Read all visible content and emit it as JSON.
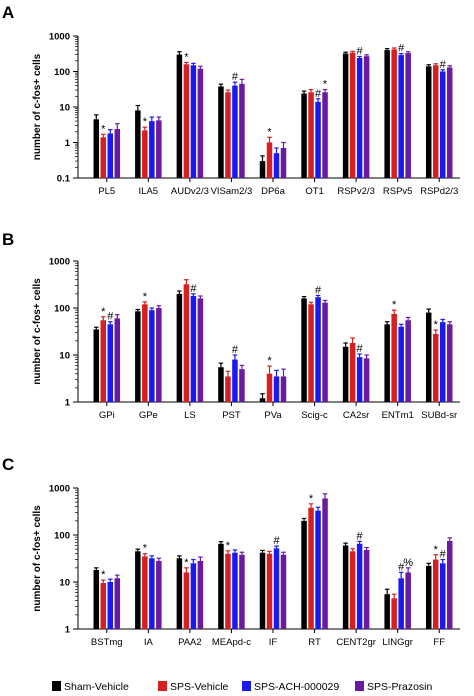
{
  "legend": {
    "colors": [
      "#000000",
      "#d42020",
      "#1a1aee",
      "#6a1a9e"
    ],
    "entries": [
      "Sham-Vehicle",
      "SPS-Vehicle",
      "SPS-ACH-000029",
      "SPS-Prazosin"
    ]
  },
  "chart_data": [
    {
      "type": "bar",
      "panel": "A",
      "ylabel": "number of c-fos+ cells",
      "yscale": "log",
      "ylim": [
        0.1,
        1000
      ],
      "yticks": [
        "0.1",
        "1",
        "10",
        "100",
        "1000"
      ],
      "categories": [
        "PL5",
        "ILA5",
        "AUDv2/3",
        "VISam2/3",
        "DP6a",
        "OT1",
        "RSPv2/3",
        "RSPv5",
        "RSPd2/3"
      ],
      "series": [
        {
          "name": "Sham-Vehicle",
          "values": [
            4.5,
            8,
            300,
            38,
            0.3,
            24,
            320,
            400,
            140
          ],
          "errors": [
            1.5,
            3,
            60,
            6,
            0.12,
            4,
            30,
            40,
            15
          ]
        },
        {
          "name": "SPS-Vehicle",
          "values": [
            1.4,
            2.2,
            160,
            26,
            1.0,
            26,
            340,
            420,
            150
          ],
          "errors": [
            0.3,
            0.5,
            20,
            4,
            0.4,
            5,
            30,
            40,
            15
          ]
        },
        {
          "name": "SPS-ACH-000029",
          "values": [
            1.8,
            4,
            150,
            40,
            0.5,
            14,
            240,
            290,
            100
          ],
          "errors": [
            0.5,
            1.2,
            20,
            10,
            0.2,
            3,
            25,
            30,
            12
          ]
        },
        {
          "name": "SPS-Prazosin",
          "values": [
            2.4,
            4.2,
            120,
            45,
            0.7,
            26,
            270,
            330,
            130
          ],
          "errors": [
            1.0,
            1.0,
            20,
            15,
            0.3,
            5,
            25,
            30,
            15
          ]
        }
      ],
      "annotations": [
        {
          "category": "PL5",
          "series": 1,
          "text": "*"
        },
        {
          "category": "ILA5",
          "series": 1,
          "text": "*"
        },
        {
          "category": "AUDv2/3",
          "series": 1,
          "text": "*"
        },
        {
          "category": "VISam2/3",
          "series": 2,
          "text": "#"
        },
        {
          "category": "DP6a",
          "series": 1,
          "text": "*"
        },
        {
          "category": "OT1",
          "series": 2,
          "text": "#"
        },
        {
          "category": "OT1",
          "series": 3,
          "text": "*"
        },
        {
          "category": "RSPv2/3",
          "series": 2,
          "text": "#"
        },
        {
          "category": "RSPv5",
          "series": 2,
          "text": "#"
        },
        {
          "category": "RSPd2/3",
          "series": 2,
          "text": "#"
        }
      ]
    },
    {
      "type": "bar",
      "panel": "B",
      "ylabel": "number of c-fos+ cells",
      "yscale": "log",
      "ylim": [
        1,
        1000
      ],
      "yticks": [
        "1",
        "10",
        "100",
        "1000"
      ],
      "categories": [
        "GPi",
        "GPe",
        "LS",
        "PST",
        "PVa",
        "Scig-c",
        "CA2sr",
        "ENTm1",
        "SUBd-sr"
      ],
      "series": [
        {
          "name": "Sham-Vehicle",
          "values": [
            35,
            85,
            200,
            5.5,
            1.2,
            160,
            15,
            45,
            80
          ],
          "errors": [
            4,
            8,
            30,
            1.2,
            0.3,
            15,
            3,
            6,
            15
          ]
        },
        {
          "name": "SPS-Vehicle",
          "values": [
            55,
            120,
            320,
            3.5,
            4,
            120,
            18,
            75,
            28
          ],
          "errors": [
            10,
            15,
            80,
            1.0,
            1.8,
            12,
            5,
            15,
            6
          ]
        },
        {
          "name": "SPS-ACH-000029",
          "values": [
            45,
            90,
            180,
            8,
            3.5,
            170,
            9,
            40,
            50
          ],
          "errors": [
            6,
            10,
            20,
            2,
            1.2,
            15,
            1.5,
            5,
            7
          ]
        },
        {
          "name": "SPS-Prazosin",
          "values": [
            60,
            100,
            160,
            5,
            3.5,
            130,
            8.5,
            55,
            45
          ],
          "errors": [
            12,
            12,
            20,
            1.0,
            1.5,
            15,
            1.5,
            8,
            6
          ]
        }
      ],
      "annotations": [
        {
          "category": "GPi",
          "series": 1,
          "text": "*"
        },
        {
          "category": "GPi",
          "series": 2,
          "text": "#"
        },
        {
          "category": "GPe",
          "series": 1,
          "text": "*"
        },
        {
          "category": "LS",
          "series": 2,
          "text": "#"
        },
        {
          "category": "PST",
          "series": 2,
          "text": "#"
        },
        {
          "category": "PVa",
          "series": 1,
          "text": "*"
        },
        {
          "category": "Scig-c",
          "series": 2,
          "text": "#"
        },
        {
          "category": "CA2sr",
          "series": 2,
          "text": "#"
        },
        {
          "category": "ENTm1",
          "series": 1,
          "text": "*"
        },
        {
          "category": "SUBd-sr",
          "series": 1,
          "text": "*"
        }
      ]
    },
    {
      "type": "bar",
      "panel": "C",
      "ylabel": "number of c-fos+ cells",
      "yscale": "log",
      "ylim": [
        1,
        1000
      ],
      "yticks": [
        "1",
        "10",
        "100",
        "1000"
      ],
      "categories": [
        "BSTmg",
        "IA",
        "PAA2",
        "MEApd-c",
        "IF",
        "RT",
        "CENT2gr",
        "LINGgr",
        "FF"
      ],
      "series": [
        {
          "name": "Sham-Vehicle",
          "values": [
            18,
            45,
            32,
            65,
            42,
            200,
            60,
            5.5,
            22
          ],
          "errors": [
            2,
            5,
            4,
            7,
            5,
            25,
            7,
            1.5,
            3
          ]
        },
        {
          "name": "SPS-Vehicle",
          "values": [
            9.5,
            35,
            16,
            40,
            40,
            380,
            45,
            4.5,
            30
          ],
          "errors": [
            1.5,
            5,
            4,
            6,
            5,
            80,
            6,
            1.0,
            8
          ]
        },
        {
          "name": "SPS-ACH-000029",
          "values": [
            10,
            32,
            25,
            42,
            52,
            330,
            65,
            12,
            25
          ],
          "errors": [
            1.5,
            4,
            5,
            6,
            6,
            60,
            8,
            4,
            5
          ]
        },
        {
          "name": "SPS-Prazosin",
          "values": [
            12,
            28,
            28,
            38,
            38,
            600,
            48,
            16,
            75
          ],
          "errors": [
            2,
            4,
            6,
            5,
            5,
            150,
            6,
            4,
            12
          ]
        }
      ],
      "annotations": [
        {
          "category": "BSTmg",
          "series": 1,
          "text": "*"
        },
        {
          "category": "IA",
          "series": 1,
          "text": "*"
        },
        {
          "category": "PAA2",
          "series": 1,
          "text": "*"
        },
        {
          "category": "MEApd-c",
          "series": 1,
          "text": "*"
        },
        {
          "category": "IF",
          "series": 2,
          "text": "#"
        },
        {
          "category": "RT",
          "series": 1,
          "text": "*"
        },
        {
          "category": "CENT2gr",
          "series": 2,
          "text": "#"
        },
        {
          "category": "LINGgr",
          "series": 2,
          "text": "#"
        },
        {
          "category": "LINGgr",
          "series": 3,
          "text": "%"
        },
        {
          "category": "FF",
          "series": 1,
          "text": "*"
        },
        {
          "category": "FF",
          "series": 2,
          "text": "#"
        }
      ]
    }
  ]
}
